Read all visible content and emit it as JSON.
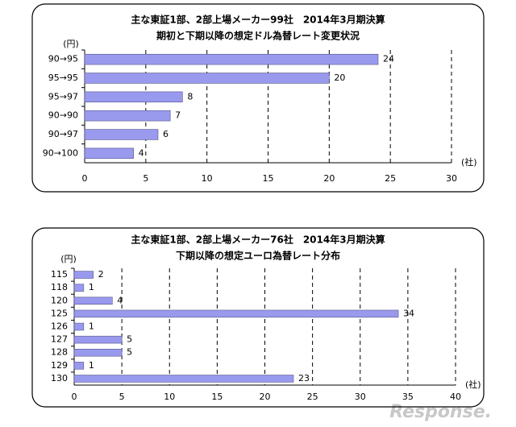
{
  "chart_data": [
    {
      "type": "bar",
      "orientation": "horizontal",
      "title": "主な東証1部、2部上場メーカー99社　2014年3月期決算",
      "subtitle": "期初と下期以降の想定ドル為替レート変更状況",
      "y_label": "(円)",
      "x_label": "(社)",
      "categories": [
        "90→95",
        "95→95",
        "95→97",
        "90→90",
        "90→97",
        "90→100"
      ],
      "values": [
        24,
        20,
        8,
        7,
        6,
        4
      ],
      "color": "#9999ee",
      "xlim": [
        0,
        30
      ],
      "xticks": [
        0,
        5,
        10,
        15,
        20,
        25,
        30
      ],
      "grid": true
    },
    {
      "type": "bar",
      "orientation": "horizontal",
      "title": "主な東証1部、2部上場メーカー76社　2014年3月期決算",
      "subtitle": "下期以降の想定ユーロ為替レート分布",
      "y_label": "(円)",
      "x_label": "(社)",
      "categories": [
        "115",
        "118",
        "120",
        "125",
        "126",
        "127",
        "128",
        "129",
        "130"
      ],
      "values": [
        2,
        1,
        4,
        34,
        1,
        5,
        5,
        1,
        23
      ],
      "color": "#9999ee",
      "xlim": [
        0,
        40
      ],
      "xticks": [
        0,
        5,
        10,
        15,
        20,
        25,
        30,
        35,
        40
      ],
      "grid": true
    }
  ],
  "watermark": "Response."
}
